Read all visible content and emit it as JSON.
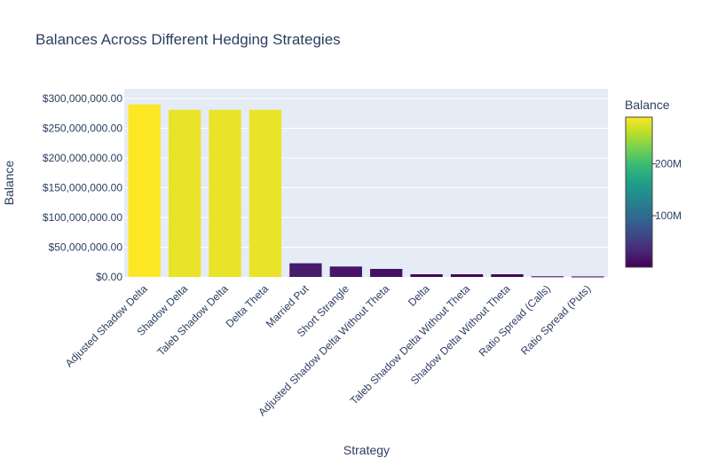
{
  "chart_data": {
    "type": "bar",
    "title": "Balances Across Different Hedging Strategies",
    "xlabel": "Strategy",
    "ylabel": "Balance",
    "ylim": [
      0,
      300000000
    ],
    "y_ticks": [
      0,
      50000000,
      100000000,
      150000000,
      200000000,
      250000000,
      300000000
    ],
    "y_tick_labels": [
      "$0.00",
      "$50,000,000.00",
      "$100,000,000.00",
      "$150,000,000.00",
      "$200,000,000.00",
      "$250,000,000.00",
      "$300,000,000.00"
    ],
    "categories": [
      "Adjusted Shadow Delta",
      "Shadow Delta",
      "Taleb Shadow Delta",
      "Delta Theta",
      "Married Put",
      "Short Strangle",
      "Adjusted Shadow Delta Without Theta",
      "Delta",
      "Taleb Shadow Delta Without Theta",
      "Shadow Delta Without Theta",
      "Ratio Spread (Calls)",
      "Ratio Spread (Puts)"
    ],
    "values": [
      290000000,
      281000000,
      281000000,
      281000000,
      23000000,
      17500000,
      13500000,
      4500000,
      4500000,
      4500000,
      1000000,
      800000
    ],
    "grid": true,
    "colorscale": "Viridis",
    "colorbar": {
      "title": "Balance",
      "ticks": [
        100000000,
        200000000
      ],
      "tick_labels": [
        "100M",
        "200M"
      ],
      "range": [
        800000,
        290000000
      ]
    },
    "plot_bg": "#e5ecf6"
  }
}
